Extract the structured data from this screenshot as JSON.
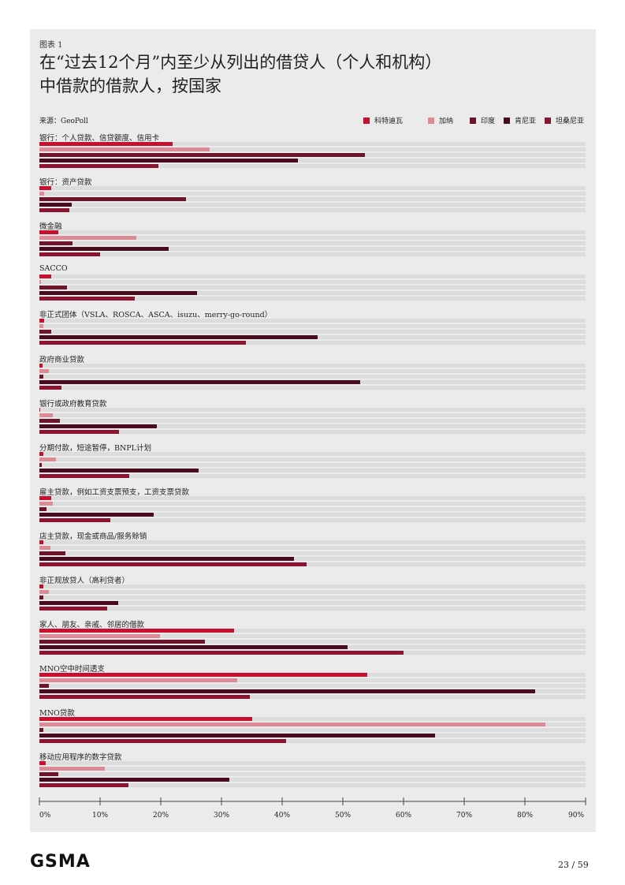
{
  "header": {
    "chart_label": "图表 1",
    "title": "在“过去12个月”内至少从列出的借贷人（个人和机构）中借款的借款人，按国家",
    "source": "来源：GeoPoll"
  },
  "footer": {
    "logo_text": "GSMA",
    "page_number": "23 / 59"
  },
  "chart_data": {
    "type": "bar",
    "orientation": "horizontal",
    "xlim": [
      0,
      90
    ],
    "x_ticks": [
      "0%",
      "10%",
      "20%",
      "30%",
      "40%",
      "50%",
      "60%",
      "70%",
      "80%",
      "90%"
    ],
    "series": [
      {
        "name": "科特迪瓦",
        "color": "#c8102e"
      },
      {
        "name": "加纳",
        "color": "#dd8a96"
      },
      {
        "name": "印度",
        "color": "#6e1428"
      },
      {
        "name": "肯尼亚",
        "color": "#4a0d1d"
      },
      {
        "name": "坦桑尼亚",
        "color": "#8c1430"
      }
    ],
    "categories": [
      {
        "label": "银行：个人贷款、信贷额度、信用卡",
        "values": [
          22,
          28,
          53.7,
          42.6,
          19.6
        ]
      },
      {
        "label": "银行：资产贷款",
        "values": [
          2,
          0.8,
          24.2,
          5.3,
          4.9
        ]
      },
      {
        "label": "微金融",
        "values": [
          3.1,
          16,
          5.5,
          21.3,
          10
        ]
      },
      {
        "label": "SACCO",
        "values": [
          2,
          0.2,
          4.6,
          26,
          15.7
        ]
      },
      {
        "label": "非正式团体（VSLA、ROSCA、ASCA、isuzu、merry-go-round）",
        "values": [
          0.8,
          0.7,
          1.9,
          45.9,
          34
        ]
      },
      {
        "label": "政府商业贷款",
        "values": [
          0.5,
          1.5,
          0.7,
          52.9,
          3.7
        ]
      },
      {
        "label": "银行或政府教育贷款",
        "values": [
          0.1,
          2.2,
          3.4,
          19.3,
          13.1
        ]
      },
      {
        "label": "分期付款，短途暂停，BNPL计划",
        "values": [
          0.7,
          2.7,
          0.4,
          26.2,
          14.8
        ]
      },
      {
        "label": "雇主贷款，例如工资支票预支，工资支票贷款",
        "values": [
          2,
          2.2,
          1.2,
          18.8,
          11.7
        ]
      },
      {
        "label": "店主贷款，现金或商品/服务赊销",
        "values": [
          0.6,
          1.8,
          4.3,
          41.9,
          44
        ]
      },
      {
        "label": "非正规放贷人（高利贷者）",
        "values": [
          0.6,
          1.5,
          0.7,
          13,
          11.2
        ]
      },
      {
        "label": "家人、朋友、亲戚、邻居的借款",
        "values": [
          32.1,
          19.9,
          27.3,
          50.8,
          60
        ]
      },
      {
        "label": "MNO空中时间透支",
        "values": [
          54,
          32.6,
          1.5,
          81.7,
          34.7
        ]
      },
      {
        "label": "MNO贷款",
        "values": [
          35.1,
          83.4,
          0.6,
          65.2,
          40.7
        ]
      },
      {
        "label": "移动应用程序的数字贷款",
        "values": [
          1,
          10.8,
          3.1,
          31.3,
          14.7
        ]
      }
    ]
  }
}
